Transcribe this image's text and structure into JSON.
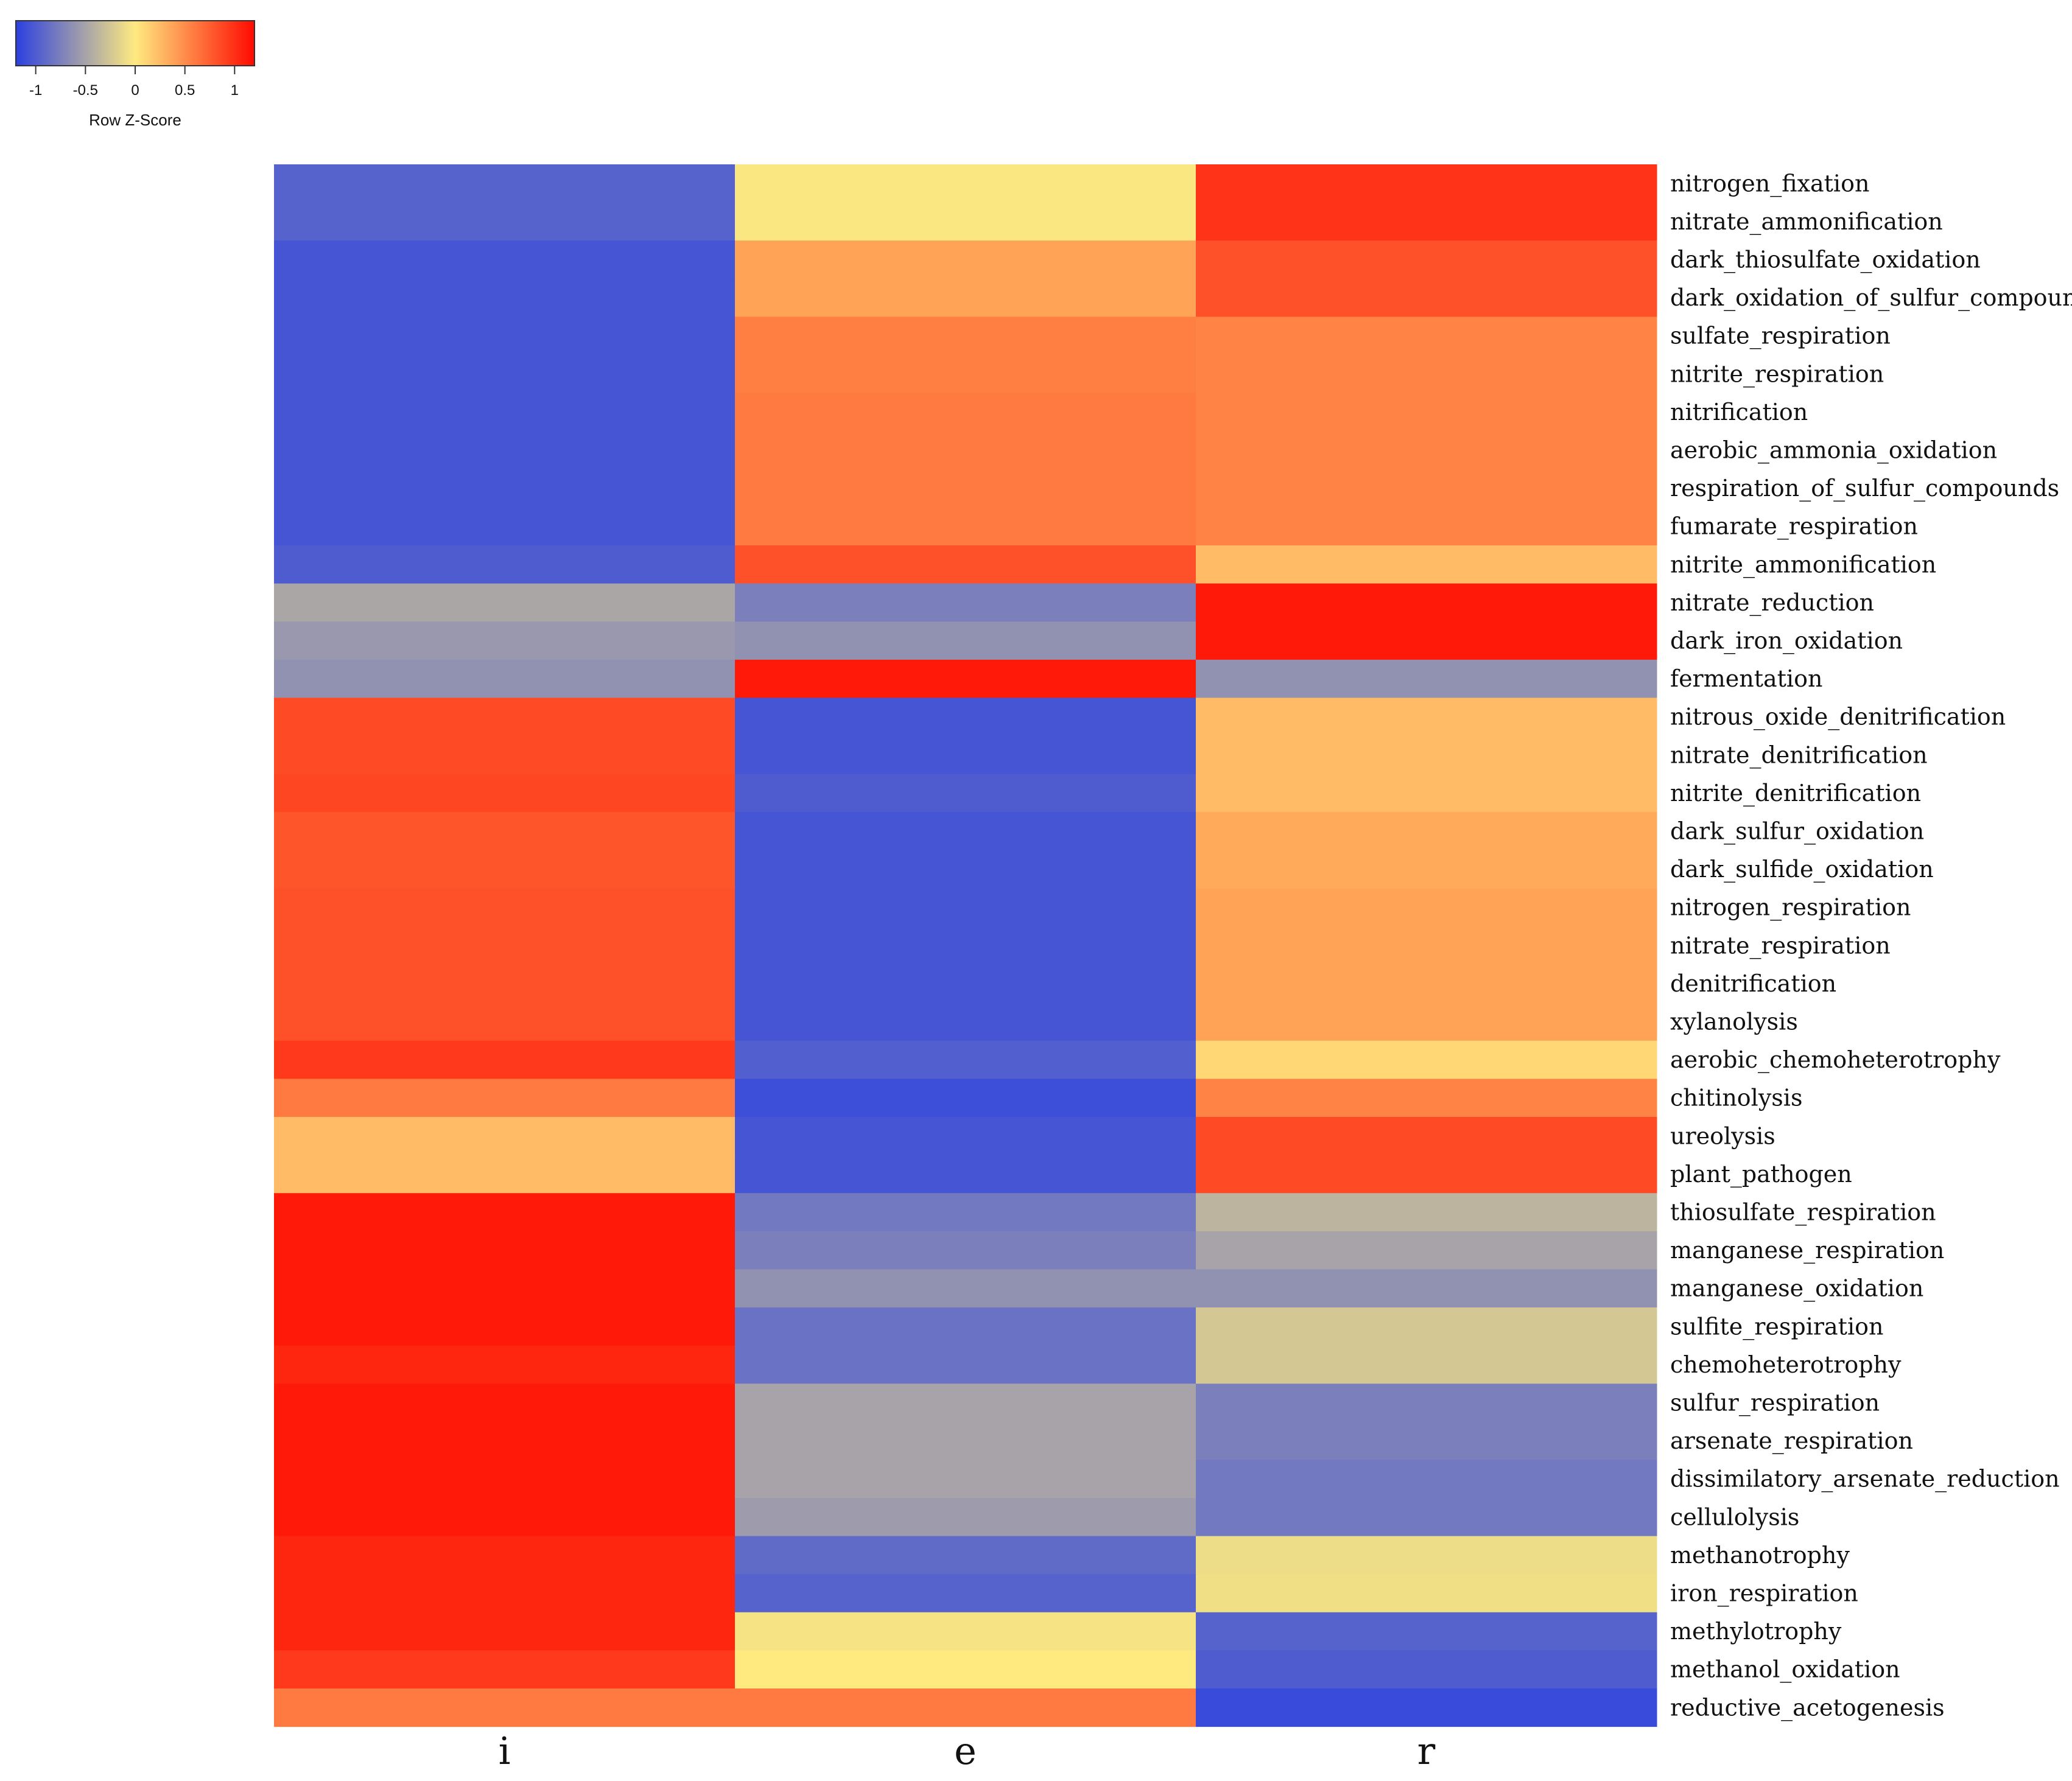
{
  "chart_data": {
    "type": "heatmap",
    "columns": [
      "i",
      "e",
      "r"
    ],
    "rows": [
      "nitrogen_fixation",
      "nitrate_ammonification",
      "dark_thiosulfate_oxidation",
      "dark_oxidation_of_sulfur_compounds",
      "sulfate_respiration",
      "nitrite_respiration",
      "nitrification",
      "aerobic_ammonia_oxidation",
      "respiration_of_sulfur_compounds",
      "fumarate_respiration",
      "nitrite_ammonification",
      "nitrate_reduction",
      "dark_iron_oxidation",
      "fermentation",
      "nitrous_oxide_denitrification",
      "nitrate_denitrification",
      "nitrite_denitrification",
      "dark_sulfur_oxidation",
      "dark_sulfide_oxidation",
      "nitrogen_respiration",
      "nitrate_respiration",
      "denitrification",
      "xylanolysis",
      "aerobic_chemoheterotrophy",
      "chitinolysis",
      "ureolysis",
      "plant_pathogen",
      "thiosulfate_respiration",
      "manganese_respiration",
      "manganese_oxidation",
      "sulfite_respiration",
      "chemoheterotrophy",
      "sulfur_respiration",
      "arsenate_respiration",
      "dissimilatory_arsenate_reduction",
      "cellulolysis",
      "methanotrophy",
      "iron_respiration",
      "methylotrophy",
      "methanol_oxidation",
      "reductive_acetogenesis"
    ],
    "values": [
      [
        -0.95,
        -0.02,
        0.98
      ],
      [
        -0.95,
        -0.02,
        0.98
      ],
      [
        -1.05,
        0.38,
        0.82
      ],
      [
        -1.05,
        0.38,
        0.82
      ],
      [
        -1.05,
        0.58,
        0.55
      ],
      [
        -1.05,
        0.58,
        0.55
      ],
      [
        -1.05,
        0.6,
        0.55
      ],
      [
        -1.05,
        0.6,
        0.55
      ],
      [
        -1.05,
        0.6,
        0.55
      ],
      [
        -1.05,
        0.6,
        0.55
      ],
      [
        -1.0,
        0.82,
        0.25
      ],
      [
        -0.48,
        -0.75,
        1.12
      ],
      [
        -0.58,
        -0.62,
        1.12
      ],
      [
        -0.62,
        1.12,
        -0.62
      ],
      [
        0.85,
        -1.05,
        0.25
      ],
      [
        0.85,
        -1.05,
        0.25
      ],
      [
        0.88,
        -1.0,
        0.25
      ],
      [
        0.8,
        -1.05,
        0.35
      ],
      [
        0.8,
        -1.05,
        0.35
      ],
      [
        0.82,
        -1.05,
        0.38
      ],
      [
        0.82,
        -1.05,
        0.38
      ],
      [
        0.82,
        -1.05,
        0.38
      ],
      [
        0.82,
        -1.05,
        0.38
      ],
      [
        0.95,
        -0.98,
        0.1
      ],
      [
        0.6,
        -1.1,
        0.55
      ],
      [
        0.25,
        -1.05,
        0.85
      ],
      [
        0.25,
        -1.05,
        0.85
      ],
      [
        1.12,
        -0.8,
        -0.38
      ],
      [
        1.12,
        -0.75,
        -0.5
      ],
      [
        1.12,
        -0.62,
        -0.62
      ],
      [
        1.12,
        -0.85,
        -0.25
      ],
      [
        1.05,
        -0.85,
        -0.25
      ],
      [
        1.12,
        -0.5,
        -0.75
      ],
      [
        1.12,
        -0.5,
        -0.75
      ],
      [
        1.12,
        -0.5,
        -0.8
      ],
      [
        1.12,
        -0.55,
        -0.8
      ],
      [
        1.05,
        -0.9,
        -0.1
      ],
      [
        1.05,
        -0.95,
        -0.08
      ],
      [
        1.05,
        -0.05,
        -0.95
      ],
      [
        0.95,
        0.0,
        -1.0
      ],
      [
        0.6,
        0.6,
        -1.12
      ]
    ],
    "colorscale": {
      "low": "#2b40e0",
      "mid": "#ffea80",
      "high": "#ff0a00",
      "min": -1.2,
      "max": 1.2
    },
    "legend": {
      "title": "Row Z-Score",
      "ticks": [
        -1,
        -0.5,
        0,
        0.5,
        1
      ],
      "tick_labels": [
        "-1",
        "-0.5",
        "0",
        "0.5",
        "1"
      ],
      "placement": "top-left"
    }
  }
}
